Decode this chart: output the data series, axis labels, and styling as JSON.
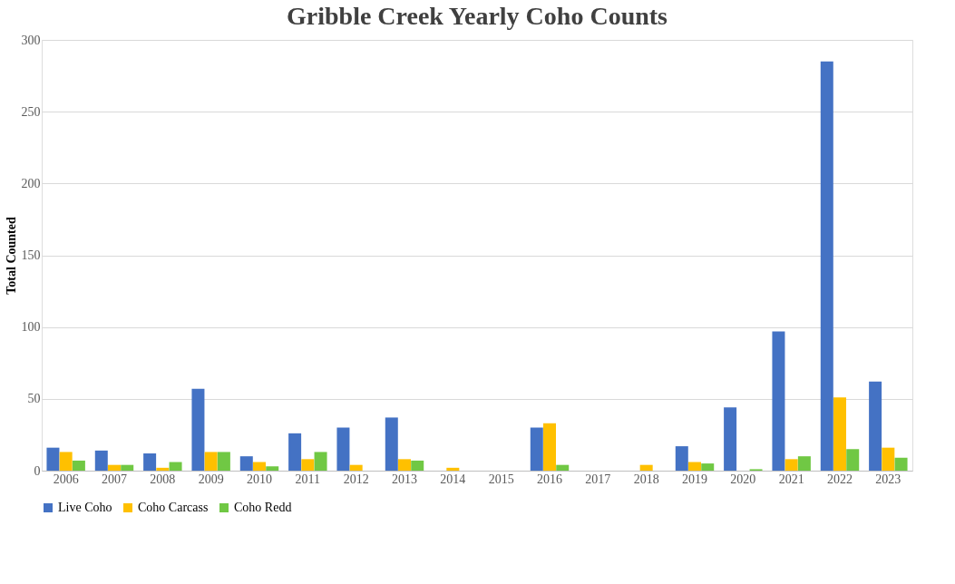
{
  "chart_data": {
    "type": "bar",
    "title": "Gribble Creek Yearly Coho Counts",
    "ylabel": "Total Counted",
    "categories": [
      "2006",
      "2007",
      "2008",
      "2009",
      "2010",
      "2011",
      "2012",
      "2013",
      "2014",
      "2015",
      "2016",
      "2017",
      "2018",
      "2019",
      "2020",
      "2021",
      "2022",
      "2023"
    ],
    "series": [
      {
        "name": "Live Coho",
        "color": "#4472c4",
        "values": [
          16,
          14,
          12,
          57,
          10,
          26,
          30,
          37,
          0,
          0,
          30,
          0,
          0,
          17,
          44,
          97,
          285,
          62
        ]
      },
      {
        "name": "Coho Carcass",
        "color": "#ffc000",
        "values": [
          13,
          4,
          2,
          13,
          6,
          8,
          4,
          8,
          2,
          0,
          33,
          0,
          4,
          6,
          0,
          8,
          51,
          16
        ]
      },
      {
        "name": "Coho Redd",
        "color": "#70c844",
        "values": [
          7,
          4,
          6,
          13,
          3,
          13,
          0,
          7,
          0,
          0,
          4,
          0,
          0,
          5,
          1,
          10,
          15,
          9
        ]
      }
    ],
    "ylim": [
      0,
      300
    ],
    "yticks": [
      0,
      50,
      100,
      150,
      200,
      250,
      300
    ],
    "grid": "y",
    "legend": "bottom"
  }
}
